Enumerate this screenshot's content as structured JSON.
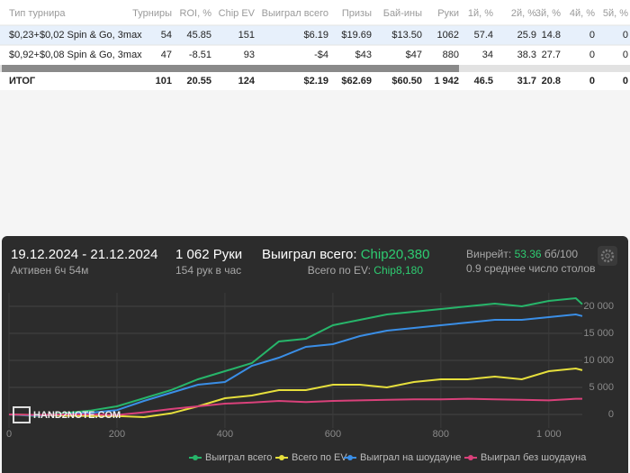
{
  "table": {
    "headers": [
      "Тип турнира",
      "Турниры",
      "ROI, %",
      "Chip EV",
      "Выиграл всего",
      "Призы",
      "Бай-ины",
      "Руки",
      "1й, %",
      "2й, %",
      "3й, %",
      "4й, %",
      "5й, %"
    ],
    "rows": [
      [
        "$0,23+$0,02 Spin & Go, 3max",
        "54",
        "45.85",
        "151",
        "$6.19",
        "$19.69",
        "$13.50",
        "1062",
        "57.4",
        "25.9",
        "14.8",
        "0",
        "0"
      ],
      [
        "$0,92+$0,08 Spin & Go, 3max",
        "47",
        "-8.51",
        "93",
        "-$4",
        "$43",
        "$47",
        "880",
        "34",
        "38.3",
        "27.7",
        "0",
        "0"
      ]
    ],
    "total": [
      "ИТОГ",
      "101",
      "20.55",
      "124",
      "$2.19",
      "$62.69",
      "$60.50",
      "1 942",
      "46.5",
      "31.7",
      "20.8",
      "0",
      "0"
    ]
  },
  "panel": {
    "date_range": "19.12.2024 - 21.12.2024",
    "active": "Активен 6ч 54м",
    "hands": "1 062 Руки",
    "hands_per_hour": "154 рук в час",
    "won_label": "Выиграл всего: ",
    "won_value": "Chip20,380",
    "ev_label": "Всего по EV: ",
    "ev_value": "Chip8,180",
    "winrate_label": "Винрейт: ",
    "winrate_value": "53.36",
    "winrate_unit": " бб/100",
    "tables": "0.9 среднее число столов",
    "watermark": "HAND2NOTE.COM"
  },
  "chart_data": {
    "type": "line",
    "x": [
      0,
      50,
      100,
      150,
      200,
      250,
      300,
      350,
      400,
      450,
      500,
      550,
      600,
      650,
      700,
      750,
      800,
      850,
      900,
      950,
      1000,
      1050,
      1062
    ],
    "series": [
      {
        "name": "Выиграл всего",
        "color": "#27b56a",
        "values": [
          0,
          -300,
          200,
          700,
          1500,
          3000,
          4500,
          6500,
          8000,
          9500,
          13500,
          14000,
          16500,
          17500,
          18500,
          19000,
          19500,
          20000,
          20500,
          20000,
          21000,
          21500,
          20380
        ]
      },
      {
        "name": "Всего по EV",
        "color": "#e6df3c",
        "values": [
          0,
          -100,
          -200,
          -300,
          -300,
          -500,
          200,
          1500,
          3000,
          3500,
          4500,
          4500,
          5500,
          5500,
          5000,
          6000,
          6500,
          6500,
          7000,
          6500,
          8000,
          8500,
          8180
        ]
      },
      {
        "name": "Выиграл на шоудауне",
        "color": "#3a8ee6",
        "values": [
          0,
          -200,
          0,
          300,
          800,
          2500,
          4000,
          5500,
          6000,
          9000,
          10500,
          12500,
          13000,
          14500,
          15500,
          16000,
          16500,
          17000,
          17500,
          17500,
          18000,
          18500,
          18200
        ]
      },
      {
        "name": "Выиграл без шоудауна",
        "color": "#d9417a",
        "values": [
          0,
          -100,
          0,
          0,
          -100,
          400,
          1000,
          1500,
          2000,
          2200,
          2500,
          2300,
          2500,
          2600,
          2700,
          2800,
          2800,
          2900,
          2800,
          2700,
          2600,
          2900,
          2900
        ]
      }
    ],
    "xlim": [
      0,
      1062
    ],
    "xticks": [
      0,
      200,
      400,
      600,
      800,
      {
        "value": 1000,
        "label": "1 000"
      }
    ],
    "ylim": [
      -2500,
      22500
    ],
    "yticks": [
      0,
      {
        "value": 5000,
        "label": "5 000"
      },
      {
        "value": 10000,
        "label": "10 000"
      },
      {
        "value": 15000,
        "label": "15 000"
      },
      {
        "value": 20000,
        "label": "20 000"
      }
    ],
    "grid": true
  }
}
